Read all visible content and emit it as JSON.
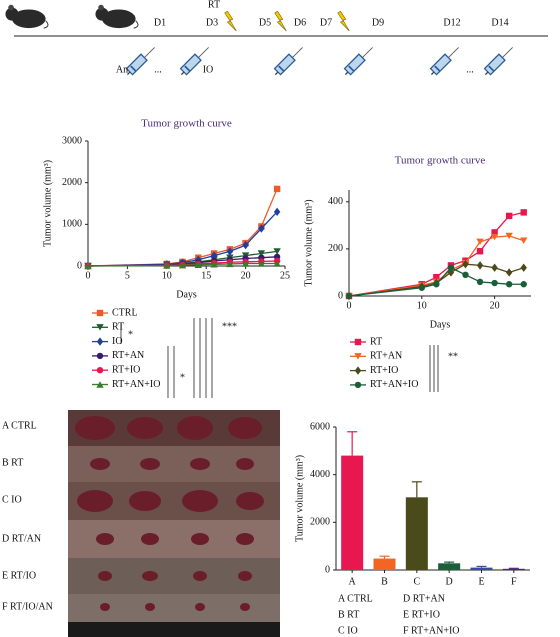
{
  "timeline": {
    "rt_label": "RT",
    "days": [
      "D1",
      "D3",
      "D5",
      "D6",
      "D7",
      "D9",
      "D12",
      "D14"
    ],
    "injections": [
      "An",
      "...",
      "IO",
      "..."
    ]
  },
  "photo": {
    "labels": [
      "A CTRL",
      "B RT",
      "C IO",
      "D RT/AN",
      "E RT/IO",
      "F RT/IO/AN"
    ]
  },
  "chart_data": [
    {
      "type": "line",
      "title": "Tumor growth curve",
      "xlabel": "Days",
      "ylabel": "Tumor volume (mm³)",
      "x": [
        0,
        10,
        12,
        14,
        16,
        18,
        20,
        22,
        24
      ],
      "xlim": [
        0,
        25
      ],
      "xticks": [
        0,
        5,
        10,
        15,
        20,
        25
      ],
      "ylim": [
        0,
        3000
      ],
      "yticks": [
        0,
        1000,
        2000,
        3000
      ],
      "series": [
        {
          "name": "CTRL",
          "color": "#f05a28",
          "marker": "square",
          "values": [
            0,
            50,
            100,
            200,
            300,
            400,
            550,
            950,
            1850
          ]
        },
        {
          "name": "RT",
          "color": "#1e5e2e",
          "marker": "tri-down",
          "values": [
            0,
            30,
            60,
            100,
            150,
            200,
            250,
            300,
            350
          ]
        },
        {
          "name": "IO",
          "color": "#2040a0",
          "marker": "diamond",
          "values": [
            0,
            40,
            80,
            150,
            250,
            350,
            500,
            900,
            1300
          ]
        },
        {
          "name": "RT+AN",
          "color": "#3a1a6a",
          "marker": "circle",
          "values": [
            0,
            20,
            40,
            80,
            120,
            150,
            180,
            200,
            220
          ]
        },
        {
          "name": "RT+IO",
          "color": "#e8174f",
          "marker": "circle",
          "values": [
            0,
            15,
            30,
            50,
            70,
            90,
            100,
            110,
            120
          ]
        },
        {
          "name": "RT+AN+IO",
          "color": "#3a7a2a",
          "marker": "tri-up",
          "values": [
            0,
            10,
            20,
            30,
            40,
            50,
            60,
            60,
            60
          ]
        }
      ],
      "annotations": [
        "*",
        "*",
        "***"
      ]
    },
    {
      "type": "line",
      "title": "Tumor growth curve",
      "xlabel": "Days",
      "ylabel": "Tumor volume (mm³)",
      "x": [
        0,
        10,
        12,
        14,
        16,
        18,
        20,
        22,
        24
      ],
      "xlim": [
        0,
        25
      ],
      "xticks": [
        0,
        10,
        20
      ],
      "ylim": [
        0,
        450
      ],
      "yticks": [
        0,
        200,
        400
      ],
      "series": [
        {
          "name": "RT",
          "color": "#e8174f",
          "marker": "square",
          "values": [
            0,
            50,
            80,
            130,
            150,
            190,
            270,
            340,
            355
          ]
        },
        {
          "name": "RT+AN",
          "color": "#f26522",
          "marker": "tri-down",
          "values": [
            0,
            45,
            60,
            110,
            140,
            230,
            250,
            255,
            235
          ]
        },
        {
          "name": "RT+IO",
          "color": "#4a4a1a",
          "marker": "diamond",
          "values": [
            0,
            40,
            55,
            100,
            135,
            130,
            120,
            100,
            120
          ]
        },
        {
          "name": "RT+AN+IO",
          "color": "#1a5e3a",
          "marker": "circle",
          "values": [
            0,
            35,
            50,
            120,
            90,
            60,
            55,
            50,
            50
          ]
        }
      ],
      "annotations": [
        "**"
      ]
    },
    {
      "type": "bar",
      "ylabel": "Tumor volume (mm³)",
      "categories": [
        "A",
        "B",
        "C",
        "D",
        "E",
        "F"
      ],
      "values": [
        4800,
        480,
        3050,
        280,
        100,
        50
      ],
      "errors": [
        1000,
        100,
        650,
        50,
        50,
        20
      ],
      "colors": [
        "#e8174f",
        "#f26522",
        "#4a4a1a",
        "#1a5e3a",
        "#3a4aa0",
        "#4a2a7a"
      ],
      "legend_labels": [
        "A CTRL",
        "B RT",
        "C IO",
        "D RT+AN",
        "E RT+IO",
        "F RT+AN+IO"
      ],
      "ylim": [
        0,
        6000
      ],
      "yticks": [
        0,
        2000,
        4000,
        6000
      ]
    }
  ]
}
